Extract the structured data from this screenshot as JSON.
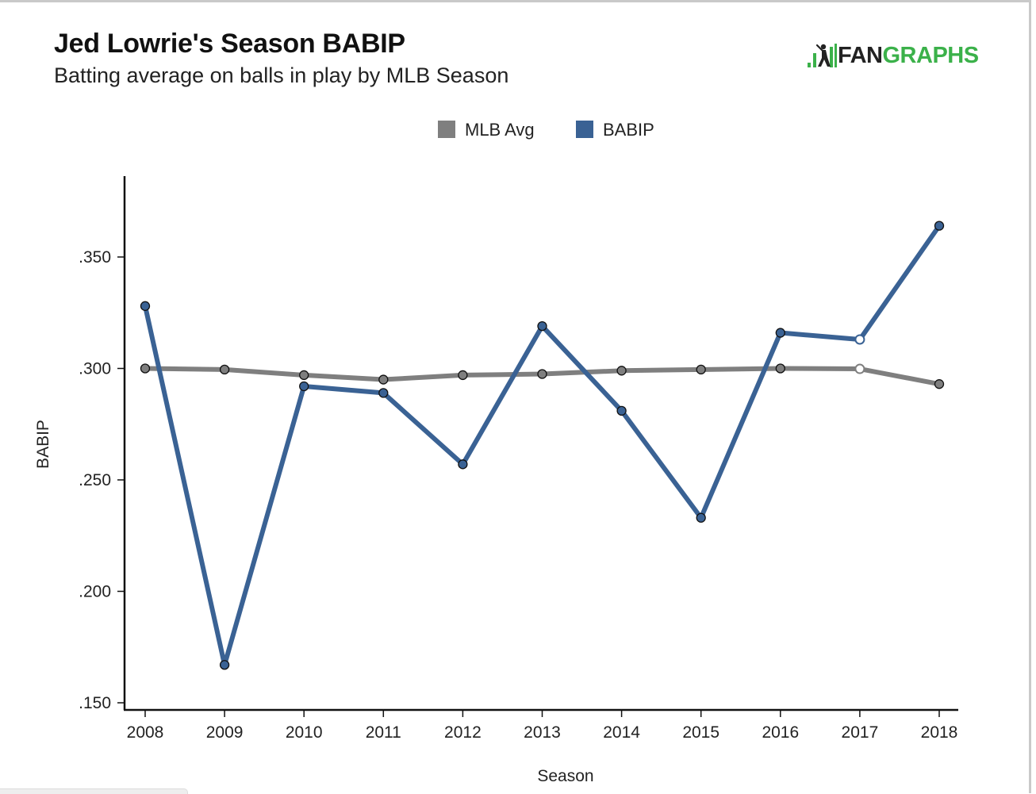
{
  "header": {
    "title": "Jed Lowrie's Season BABIP",
    "subtitle": "Batting average on balls in play by MLB Season"
  },
  "logo": {
    "part1": "FAN",
    "part2": "GRAPHS",
    "icon": "fangraphs-batter-icon",
    "accent_color": "#3bb14a"
  },
  "chart_data": {
    "type": "line",
    "xlabel": "Season",
    "ylabel": "BABIP",
    "x": [
      2008,
      2009,
      2010,
      2011,
      2012,
      2013,
      2014,
      2015,
      2016,
      2017,
      2018
    ],
    "ylim": [
      0.15,
      0.375
    ],
    "yticks": [
      0.15,
      0.2,
      0.25,
      0.3,
      0.35
    ],
    "ytick_labels": [
      ".150",
      ".200",
      ".250",
      ".300",
      ".350"
    ],
    "legend_position": "top-center",
    "grid": false,
    "series": [
      {
        "name": "MLB Avg",
        "color": "#7f7f7f",
        "values": [
          0.3,
          0.2995,
          0.297,
          0.295,
          0.297,
          0.2975,
          0.299,
          0.2995,
          0.3,
          0.2998,
          0.293
        ],
        "hollow_points": [
          9
        ]
      },
      {
        "name": "BABIP",
        "color": "#3a6294",
        "values": [
          0.328,
          0.167,
          0.292,
          0.289,
          0.257,
          0.319,
          0.281,
          0.233,
          0.316,
          0.313,
          0.364
        ],
        "hollow_points": [
          9
        ]
      }
    ]
  }
}
